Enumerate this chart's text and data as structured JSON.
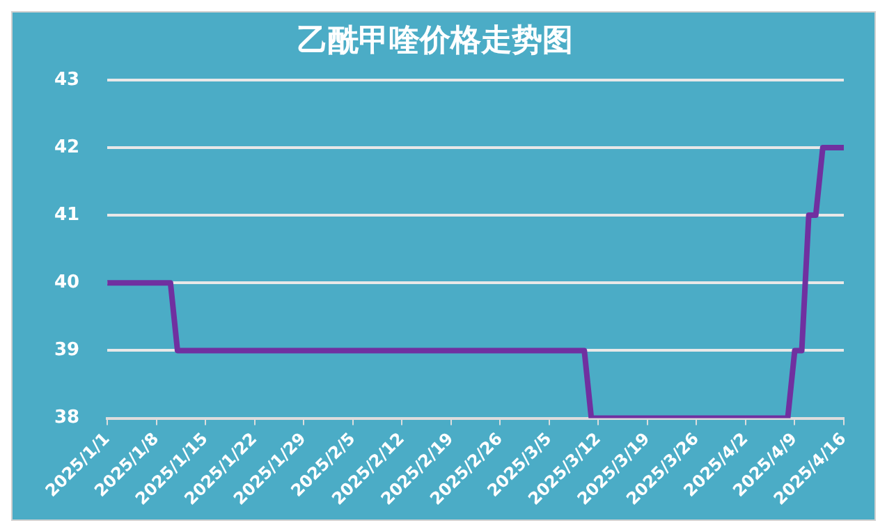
{
  "chart_data": {
    "type": "line",
    "title": "乙酰甲喹价格走势图",
    "x": [
      "2025-01-01",
      "2025-01-10",
      "2025-01-11",
      "2025-03-10",
      "2025-03-11",
      "2025-04-08",
      "2025-04-09",
      "2025-04-10",
      "2025-04-11",
      "2025-04-12",
      "2025-04-13",
      "2025-04-16"
    ],
    "series": [
      {
        "color": "#7030a0",
        "values": [
          40,
          40,
          39,
          39,
          38,
          38,
          39,
          39,
          41,
          41,
          42,
          42
        ]
      }
    ],
    "xlim": [
      "2025-01-01",
      "2025-04-16"
    ],
    "xticks": [
      {
        "value": "2025-01-01",
        "label": "2025/1/1"
      },
      {
        "value": "2025-01-08",
        "label": "2025/1/8"
      },
      {
        "value": "2025-01-15",
        "label": "2025/1/15"
      },
      {
        "value": "2025-01-22",
        "label": "2025/1/22"
      },
      {
        "value": "2025-01-29",
        "label": "2025/1/29"
      },
      {
        "value": "2025-02-05",
        "label": "2025/2/5"
      },
      {
        "value": "2025-02-12",
        "label": "2025/2/12"
      },
      {
        "value": "2025-02-19",
        "label": "2025/2/19"
      },
      {
        "value": "2025-02-26",
        "label": "2025/2/26"
      },
      {
        "value": "2025-03-05",
        "label": "2025/3/5"
      },
      {
        "value": "2025-03-12",
        "label": "2025/3/12"
      },
      {
        "value": "2025-03-19",
        "label": "2025/3/19"
      },
      {
        "value": "2025-03-26",
        "label": "2025/3/26"
      },
      {
        "value": "2025-04-02",
        "label": "2025/4/2"
      },
      {
        "value": "2025-04-09",
        "label": "2025/4/9"
      },
      {
        "value": "2025-04-16",
        "label": "2025/4/16"
      }
    ],
    "ylim": [
      38,
      43
    ],
    "yticks": [
      38,
      39,
      40,
      41,
      42,
      43
    ],
    "grid": "y",
    "legend": false,
    "marker": "none",
    "line_style": "solid"
  }
}
